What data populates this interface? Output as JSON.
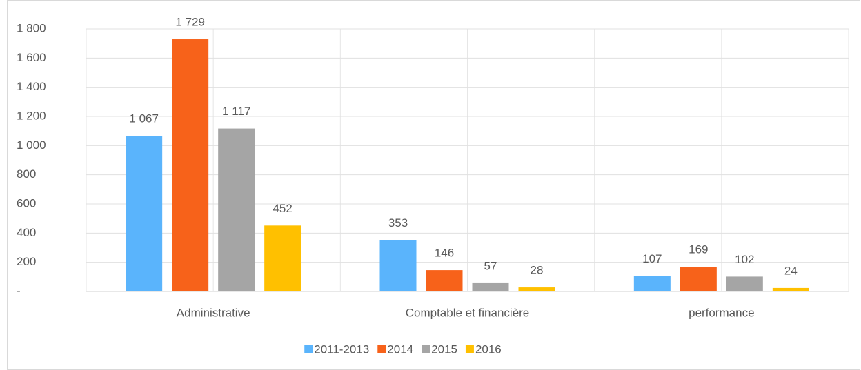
{
  "chart_data": {
    "type": "bar",
    "categories": [
      "Administrative",
      "Comptable et financière",
      "performance"
    ],
    "series": [
      {
        "name": "2011-2013",
        "color": "#5ab4fc",
        "values": [
          1067,
          353,
          107
        ],
        "value_labels": [
          "1 067",
          "353",
          "107"
        ]
      },
      {
        "name": "2014",
        "color": "#f7621a",
        "values": [
          1729,
          146,
          169
        ],
        "value_labels": [
          "1 729",
          "146",
          "169"
        ]
      },
      {
        "name": "2015",
        "color": "#a5a5a5",
        "values": [
          1117,
          57,
          102
        ],
        "value_labels": [
          "1 117",
          "57",
          "102"
        ]
      },
      {
        "name": "2016",
        "color": "#ffc000",
        "values": [
          452,
          28,
          24
        ],
        "value_labels": [
          "452",
          "28",
          "24"
        ]
      }
    ],
    "ylim": [
      0,
      1800
    ],
    "yticks": [
      {
        "value": 0,
        "label": "-"
      },
      200,
      400,
      600,
      800,
      {
        "value": 1000,
        "label": "1 000"
      },
      {
        "value": 1200,
        "label": "1 200"
      },
      {
        "value": 1400,
        "label": "1 400"
      },
      {
        "value": 1600,
        "label": "1 600"
      },
      {
        "value": 1800,
        "label": "1 800"
      }
    ],
    "grid": true,
    "legend": "bottom"
  }
}
